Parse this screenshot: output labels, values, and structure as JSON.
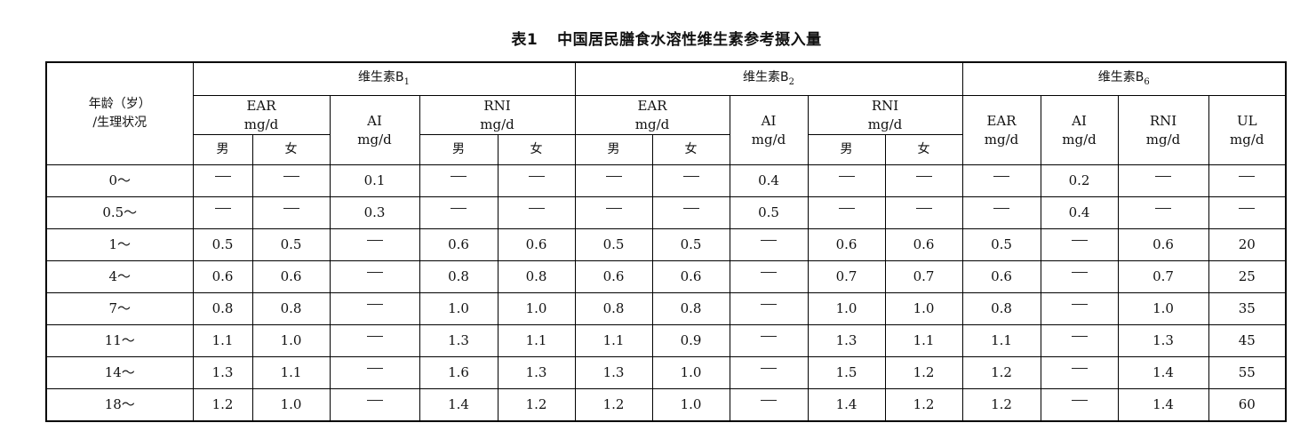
{
  "title": {
    "number": "表1",
    "text": "中国居民膳食水溶性维生素参考摄入量"
  },
  "header": {
    "age_label_line1": "年龄（岁）",
    "age_label_line2": "/生理状况",
    "group_b1": {
      "base": "维生素B",
      "sub": "1"
    },
    "group_b2": {
      "base": "维生素B",
      "sub": "2"
    },
    "group_b6": {
      "base": "维生素B",
      "sub": "6"
    },
    "ear": "EAR",
    "rni": "RNI",
    "ai": "AI",
    "ul": "UL",
    "unit": "mg/d",
    "male": "男",
    "female": "女"
  },
  "columns": [
    "b1_ear_m",
    "b1_ear_f",
    "b1_ai",
    "b1_rni_m",
    "b1_rni_f",
    "b2_ear_m",
    "b2_ear_f",
    "b2_ai",
    "b2_rni_m",
    "b2_rni_f",
    "b6_ear",
    "b6_ai",
    "b6_rni",
    "b6_ul"
  ],
  "rows": [
    {
      "age": "0～",
      "values": [
        "—",
        "—",
        "0.1",
        "—",
        "—",
        "—",
        "—",
        "0.4",
        "—",
        "—",
        "—",
        "0.2",
        "—",
        "—"
      ]
    },
    {
      "age": "0.5～",
      "values": [
        "—",
        "—",
        "0.3",
        "—",
        "—",
        "—",
        "—",
        "0.5",
        "—",
        "—",
        "—",
        "0.4",
        "—",
        "—"
      ]
    },
    {
      "age": "1～",
      "values": [
        "0.5",
        "0.5",
        "—",
        "0.6",
        "0.6",
        "0.5",
        "0.5",
        "—",
        "0.6",
        "0.6",
        "0.5",
        "—",
        "0.6",
        "20"
      ]
    },
    {
      "age": "4～",
      "values": [
        "0.6",
        "0.6",
        "—",
        "0.8",
        "0.8",
        "0.6",
        "0.6",
        "—",
        "0.7",
        "0.7",
        "0.6",
        "—",
        "0.7",
        "25"
      ]
    },
    {
      "age": "7～",
      "values": [
        "0.8",
        "0.8",
        "—",
        "1.0",
        "1.0",
        "0.8",
        "0.8",
        "—",
        "1.0",
        "1.0",
        "0.8",
        "—",
        "1.0",
        "35"
      ]
    },
    {
      "age": "11～",
      "values": [
        "1.1",
        "1.0",
        "—",
        "1.3",
        "1.1",
        "1.1",
        "0.9",
        "—",
        "1.3",
        "1.1",
        "1.1",
        "—",
        "1.3",
        "45"
      ]
    },
    {
      "age": "14～",
      "values": [
        "1.3",
        "1.1",
        "—",
        "1.6",
        "1.3",
        "1.3",
        "1.0",
        "—",
        "1.5",
        "1.2",
        "1.2",
        "—",
        "1.4",
        "55"
      ]
    },
    {
      "age": "18～",
      "values": [
        "1.2",
        "1.0",
        "—",
        "1.4",
        "1.2",
        "1.2",
        "1.0",
        "—",
        "1.4",
        "1.2",
        "1.2",
        "—",
        "1.4",
        "60"
      ]
    }
  ]
}
